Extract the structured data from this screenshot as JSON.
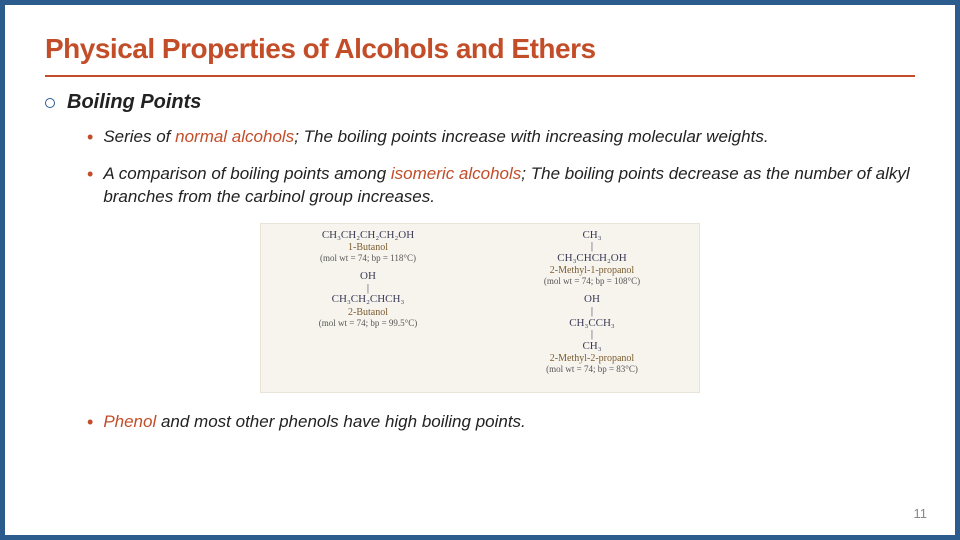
{
  "title": "Physical Properties of Alcohols and Ethers",
  "section": {
    "label": "Boiling Points"
  },
  "points": {
    "p1_pre": "Series of ",
    "p1_hl": "normal alcohols",
    "p1_post": "; The boiling points increase with increasing molecular weights.",
    "p2_pre": "A comparison of boiling points among ",
    "p2_hl": "isomeric alcohols",
    "p2_post": "; The boiling points decrease as the number of alkyl branches from the carbinol group increases.",
    "p3_hl": "Phenol",
    "p3_post": " and most other phenols have high boiling points."
  },
  "figure": {
    "mol1": {
      "struct": "CH₃CH₂CH₂CH₂OH",
      "name": "1-Butanol",
      "data": "(mol wt = 74; bp = 118°C)"
    },
    "mol2": {
      "struct_top": "CH₃",
      "struct_mid": "|",
      "struct_main": "CH₃CHCH₂OH",
      "name": "2-Methyl-1-propanol",
      "data": "(mol wt = 74; bp = 108°C)"
    },
    "mol3": {
      "struct_top": "OH",
      "struct_mid": "|",
      "struct_main": "CH₃CH₂CHCH₃",
      "name": "2-Butanol",
      "data": "(mol wt = 74; bp = 99.5°C)"
    },
    "mol4": {
      "struct_top": "OH",
      "struct_mid1": "|",
      "struct_main": "CH₃CCH₃",
      "struct_mid2": "|",
      "struct_bot": "CH₃",
      "name": "2-Methyl-2-propanol",
      "data": "(mol wt = 74; bp = 83°C)"
    }
  },
  "page_number": "11"
}
